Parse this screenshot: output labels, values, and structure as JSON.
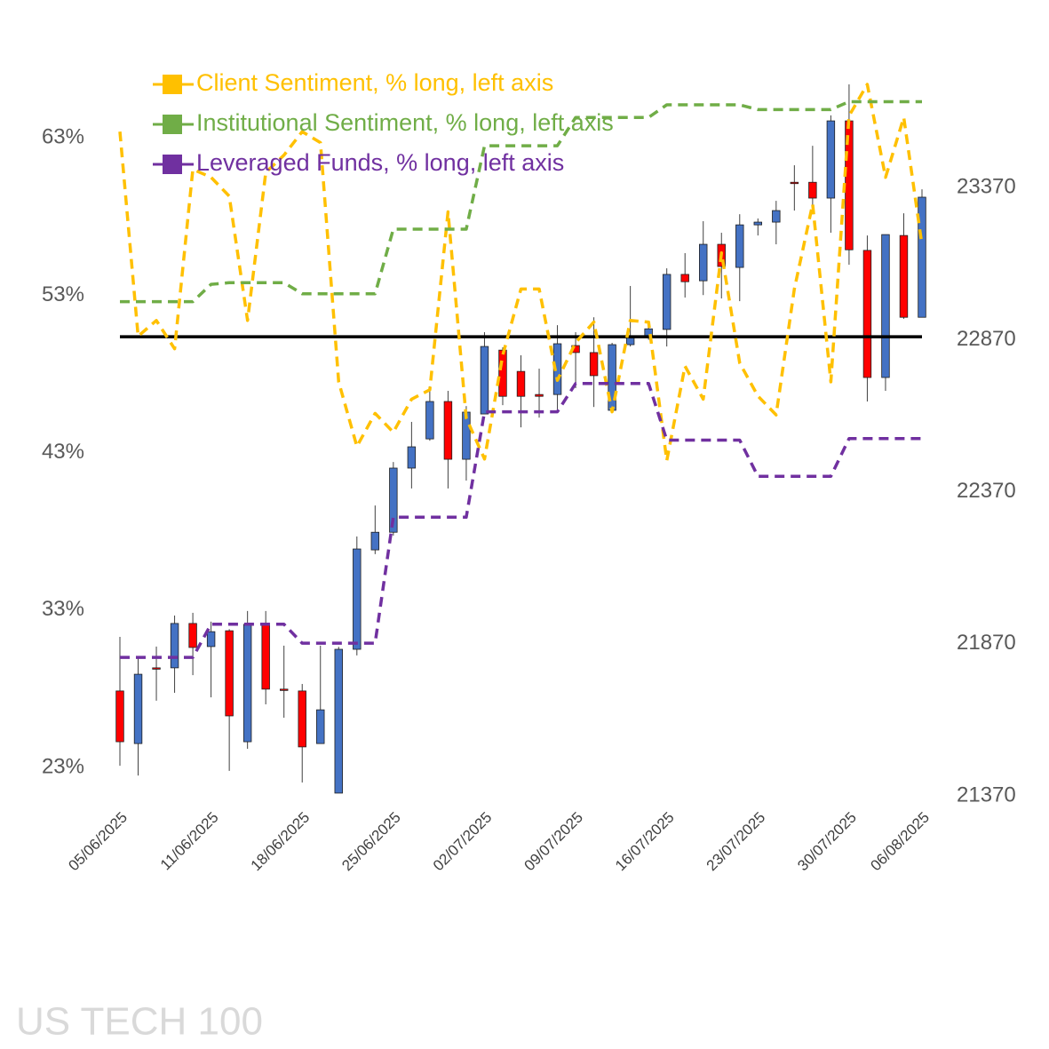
{
  "chart_data": {
    "type": "candlestick",
    "watermark": "US TECH 100",
    "categories": [
      "05/06/2025",
      null,
      null,
      null,
      null,
      "11/06/2025",
      null,
      null,
      null,
      null,
      "18/06/2025",
      null,
      null,
      null,
      null,
      "25/06/2025",
      null,
      null,
      null,
      null,
      "02/07/2025",
      null,
      null,
      null,
      null,
      "09/07/2025",
      null,
      null,
      null,
      null,
      "16/07/2025",
      null,
      null,
      null,
      null,
      "23/07/2025",
      null,
      null,
      null,
      null,
      "30/07/2025",
      null,
      null,
      null,
      "06/08/2025"
    ],
    "up_color": "#4472c4",
    "down_color": "#ff0000",
    "open": [
      21715,
      21542,
      21791,
      21791,
      21937,
      21861,
      21913,
      21548,
      21934,
      21721,
      21715,
      21542,
      21379,
      21852,
      22179,
      22237,
      22448,
      22544,
      22667,
      22477,
      22626,
      22836,
      22766,
      22690,
      22690,
      22851,
      22828,
      22638,
      22854,
      22883,
      22904,
      23085,
      23064,
      23184,
      23108,
      23248,
      23257,
      23388,
      23388,
      23336,
      23590,
      23164,
      22746,
      23213,
      22944
    ],
    "high": [
      21893,
      21826,
      21861,
      21963,
      21972,
      21943,
      21918,
      21978,
      21978,
      21864,
      21738,
      21864,
      21860,
      22223,
      22325,
      22468,
      22600,
      22717,
      22702,
      22652,
      22895,
      22845,
      22819,
      22775,
      22918,
      22895,
      22944,
      22860,
      23047,
      22918,
      23105,
      23155,
      23260,
      23222,
      23283,
      23269,
      23327,
      23444,
      23508,
      23608,
      23710,
      23213,
      23216,
      23286,
      23365
    ],
    "low": [
      21469,
      21437,
      21683,
      21709,
      21767,
      21694,
      21452,
      21525,
      21671,
      21627,
      21414,
      21542,
      21379,
      21832,
      22165,
      22226,
      22381,
      22538,
      22381,
      22407,
      22626,
      22655,
      22582,
      22614,
      22638,
      22711,
      22649,
      22630,
      22848,
      22870,
      22848,
      23009,
      23017,
      23006,
      22997,
      23213,
      23184,
      23295,
      23295,
      23222,
      23117,
      22667,
      22702,
      22939,
      22944
    ],
    "close": [
      21548,
      21770,
      21788,
      21937,
      21858,
      21910,
      21633,
      21934,
      21721,
      21718,
      21531,
      21653,
      21852,
      22182,
      22237,
      22448,
      22518,
      22667,
      22477,
      22632,
      22848,
      22684,
      22684,
      22684,
      22857,
      22828,
      22752,
      22854,
      22883,
      22906,
      23085,
      23061,
      23184,
      23111,
      23248,
      23257,
      23295,
      23385,
      23336,
      23590,
      23166,
      22746,
      23216,
      22944,
      23339
    ],
    "series": [
      {
        "name": "Client Sentiment, % long, left axis",
        "color": "#ffc000",
        "values": [
          63.4,
          50.4,
          51.4,
          49.6,
          61.0,
          60.5,
          59.3,
          51.4,
          60.8,
          61.9,
          63.4,
          62.7,
          47.5,
          43.4,
          45.5,
          44.3,
          46.4,
          47.0,
          58.3,
          45.2,
          42.6,
          49.2,
          53.4,
          53.4,
          47.6,
          50.0,
          51.3,
          45.6,
          51.4,
          51.3,
          42.5,
          48.5,
          46.4,
          55.7,
          48.7,
          46.6,
          45.4,
          53.4,
          58.8,
          47.5,
          64.4,
          66.4,
          60.5,
          64.3,
          56.2
        ]
      },
      {
        "name": "Institutional Sentiment, % long, left axis",
        "color": "#70ad47",
        "values": [
          52.6,
          52.6,
          52.6,
          52.6,
          52.6,
          53.7,
          53.8,
          53.8,
          53.8,
          53.8,
          53.1,
          53.1,
          53.1,
          53.1,
          53.1,
          57.2,
          57.2,
          57.2,
          57.2,
          57.2,
          62.5,
          62.5,
          62.5,
          62.5,
          62.5,
          64.3,
          64.3,
          64.3,
          64.3,
          64.3,
          65.1,
          65.1,
          65.1,
          65.1,
          65.1,
          64.8,
          64.8,
          64.8,
          64.8,
          64.8,
          65.3,
          65.3,
          65.3,
          65.3,
          65.3
        ]
      },
      {
        "name": "Leveraged Funds, % long, left axis",
        "color": "#7030a0",
        "values": [
          30.0,
          30.0,
          30.0,
          30.0,
          30.0,
          32.1,
          32.1,
          32.1,
          32.1,
          32.1,
          30.9,
          30.9,
          30.9,
          30.9,
          30.9,
          38.9,
          38.9,
          38.9,
          38.9,
          38.9,
          45.6,
          45.6,
          45.6,
          45.6,
          45.6,
          47.4,
          47.4,
          47.4,
          47.4,
          47.4,
          43.8,
          43.8,
          43.8,
          43.8,
          43.8,
          41.5,
          41.5,
          41.5,
          41.5,
          41.5,
          43.9,
          43.9,
          43.9,
          43.9,
          43.9
        ]
      }
    ],
    "ylim": [
      21.2,
      66.4
    ],
    "yticks": [
      {
        "value": 23,
        "label": "23%"
      },
      {
        "value": 33,
        "label": "33%"
      },
      {
        "value": 43,
        "label": "43%"
      },
      {
        "value": 53,
        "label": "53%"
      },
      {
        "value": 63,
        "label": "63%"
      }
    ],
    "y2lim": [
      21370,
      23710
    ],
    "y2ticks": [
      21370,
      21870,
      22370,
      22870,
      23370
    ],
    "reference_line": {
      "value": 22880,
      "axis": "y2",
      "color": "#000000"
    },
    "dashed_lines": true,
    "legend": "top-left"
  }
}
